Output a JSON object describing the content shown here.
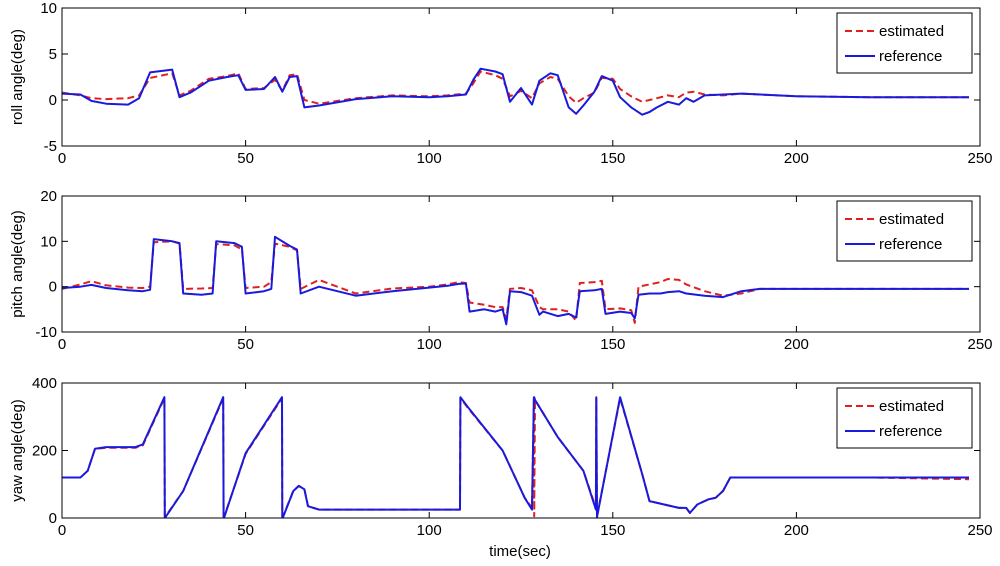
{
  "figure": {
    "xlabel": "time(sec)"
  },
  "chart_data": [
    {
      "type": "line",
      "ylabel": "roll angle(deg)",
      "xlim": [
        0,
        250
      ],
      "ylim": [
        -5,
        10
      ],
      "xticks": [
        "0",
        "50",
        "100",
        "150",
        "200",
        "250"
      ],
      "yticks": [
        "-5",
        "0",
        "5",
        "10"
      ],
      "legend": {
        "position": "top-right"
      },
      "series": [
        {
          "name": "estimated",
          "color": "#e02020",
          "style": "dashed",
          "x": [
            0,
            5,
            8,
            12,
            18,
            21,
            24,
            30,
            32,
            35,
            40,
            45,
            48,
            50,
            55,
            58,
            60,
            62,
            64,
            66,
            70,
            80,
            90,
            100,
            105,
            110,
            112,
            114,
            118,
            120,
            122,
            125,
            128,
            130,
            133,
            135,
            138,
            140,
            142,
            145,
            147,
            150,
            152,
            155,
            158,
            160,
            162,
            165,
            168,
            170,
            172,
            175,
            180,
            185,
            200,
            220,
            247
          ],
          "y": [
            0.8,
            0.5,
            0.2,
            0.1,
            0.2,
            0.5,
            2.4,
            2.9,
            0.5,
            1.0,
            2.3,
            2.6,
            2.9,
            1.2,
            1.3,
            2.2,
            1.0,
            2.7,
            2.8,
            0.0,
            -0.4,
            0.2,
            0.5,
            0.4,
            0.5,
            0.7,
            1.8,
            3.1,
            2.7,
            2.3,
            0.4,
            1.0,
            0.2,
            1.8,
            2.5,
            2.3,
            0.4,
            -0.3,
            0.2,
            0.8,
            2.4,
            2.3,
            1.2,
            0.4,
            -0.2,
            0.0,
            0.2,
            0.5,
            0.3,
            0.8,
            0.9,
            0.6,
            0.5,
            0.7,
            0.4,
            0.3,
            0.3
          ]
        },
        {
          "name": "reference",
          "color": "#1a1adc",
          "style": "solid",
          "x": [
            0,
            5,
            8,
            12,
            18,
            21,
            24,
            30,
            32,
            35,
            40,
            45,
            48,
            50,
            55,
            58,
            60,
            62,
            64,
            66,
            70,
            80,
            90,
            100,
            105,
            110,
            112,
            114,
            118,
            120,
            122,
            125,
            128,
            130,
            133,
            135,
            138,
            140,
            142,
            145,
            147,
            150,
            152,
            155,
            158,
            160,
            162,
            165,
            168,
            170,
            172,
            175,
            180,
            185,
            200,
            220,
            247
          ],
          "y": [
            0.7,
            0.6,
            -0.1,
            -0.4,
            -0.5,
            0.2,
            3.0,
            3.3,
            0.3,
            0.8,
            2.1,
            2.5,
            2.7,
            1.1,
            1.2,
            2.5,
            0.9,
            2.5,
            2.6,
            -0.8,
            -0.6,
            0.1,
            0.4,
            0.3,
            0.4,
            0.6,
            2.2,
            3.4,
            3.1,
            2.8,
            -0.2,
            1.3,
            -0.5,
            2.1,
            2.9,
            2.7,
            -0.8,
            -1.5,
            -0.6,
            0.9,
            2.6,
            2.1,
            0.3,
            -0.8,
            -1.6,
            -1.3,
            -0.8,
            -0.2,
            -0.5,
            0.2,
            -0.2,
            0.5,
            0.6,
            0.7,
            0.4,
            0.3,
            0.3
          ]
        }
      ]
    },
    {
      "type": "line",
      "ylabel": "pitch angle(deg)",
      "xlim": [
        0,
        250
      ],
      "ylim": [
        -10,
        20
      ],
      "xticks": [
        "0",
        "50",
        "100",
        "150",
        "200",
        "250"
      ],
      "yticks": [
        "-10",
        "0",
        "10",
        "20"
      ],
      "legend": {
        "position": "top-right"
      },
      "series": [
        {
          "name": "estimated",
          "color": "#e02020",
          "style": "dashed",
          "x": [
            0,
            5,
            8,
            12,
            18,
            22,
            24,
            25,
            30,
            32,
            33,
            38,
            41,
            42,
            47,
            49,
            50,
            55,
            57,
            58,
            62,
            64,
            65,
            70,
            80,
            90,
            100,
            105,
            108,
            110,
            111,
            115,
            118,
            120,
            121,
            122,
            125,
            128,
            130,
            131,
            135,
            138,
            140,
            141,
            145,
            147,
            148,
            152,
            155,
            156,
            157,
            160,
            163,
            165,
            168,
            170,
            175,
            180,
            185,
            190,
            200,
            220,
            247
          ],
          "y": [
            -0.5,
            0.5,
            1.2,
            0.3,
            -0.2,
            -0.3,
            0.0,
            9.8,
            10.0,
            9.5,
            -0.5,
            -0.4,
            -0.3,
            9.4,
            9.1,
            8.2,
            -0.3,
            0.0,
            1.0,
            9.5,
            8.8,
            8.0,
            -0.5,
            1.5,
            -1.5,
            -0.4,
            0.0,
            0.5,
            1.0,
            0.8,
            -3.5,
            -4.0,
            -4.5,
            -4.5,
            -7.2,
            -0.5,
            -0.3,
            -0.8,
            -4.5,
            -5.0,
            -5.0,
            -5.5,
            -7.5,
            0.8,
            1.0,
            1.3,
            -5.0,
            -4.8,
            -5.2,
            -8.0,
            0.0,
            0.5,
            1.0,
            1.7,
            1.5,
            0.5,
            -1.0,
            -2.0,
            -1.5,
            -0.5,
            -0.5,
            -0.5,
            -0.5
          ]
        },
        {
          "name": "reference",
          "color": "#1a1adc",
          "style": "solid",
          "x": [
            0,
            5,
            8,
            12,
            18,
            22,
            24,
            25,
            30,
            32,
            33,
            38,
            41,
            42,
            47,
            49,
            50,
            55,
            57,
            58,
            62,
            64,
            65,
            70,
            80,
            90,
            100,
            105,
            108,
            110,
            111,
            115,
            118,
            120,
            121,
            122,
            125,
            128,
            130,
            131,
            135,
            138,
            140,
            141,
            145,
            147,
            148,
            152,
            155,
            156,
            157,
            160,
            163,
            165,
            168,
            170,
            175,
            180,
            185,
            190,
            200,
            220,
            247
          ],
          "y": [
            -0.3,
            0.0,
            0.4,
            -0.3,
            -0.8,
            -1.0,
            -0.7,
            10.5,
            10.0,
            9.6,
            -1.5,
            -1.8,
            -1.5,
            10.0,
            9.6,
            8.8,
            -1.5,
            -1.0,
            -0.5,
            11.0,
            9.0,
            8.2,
            -1.5,
            0.0,
            -2.0,
            -1.0,
            -0.2,
            0.2,
            0.6,
            0.7,
            -5.5,
            -5.0,
            -5.5,
            -5.0,
            -8.3,
            -1.0,
            -1.2,
            -2.0,
            -6.2,
            -5.5,
            -6.5,
            -6.0,
            -6.8,
            -1.0,
            -0.8,
            -0.5,
            -6.0,
            -5.5,
            -5.8,
            -7.0,
            -1.8,
            -1.5,
            -1.5,
            -1.2,
            -1.0,
            -1.5,
            -2.0,
            -2.3,
            -1.0,
            -0.5,
            -0.5,
            -0.5,
            -0.5
          ]
        }
      ]
    },
    {
      "type": "line",
      "ylabel": "yaw angle(deg)",
      "xlim": [
        0,
        250
      ],
      "ylim": [
        0,
        400
      ],
      "xticks": [
        "0",
        "50",
        "100",
        "150",
        "200",
        "250"
      ],
      "yticks": [
        "0",
        "200",
        "400"
      ],
      "legend": {
        "position": "top-right"
      },
      "series": [
        {
          "name": "estimated",
          "color": "#e02020",
          "style": "dashed",
          "x": [
            0,
            5,
            7,
            9,
            12,
            20,
            22,
            27.9,
            28,
            28.2,
            33,
            43.9,
            44,
            44.2,
            50,
            59.9,
            60,
            60.2,
            63,
            64.5,
            66,
            67,
            70,
            80,
            100,
            108.4,
            108.5,
            111,
            120,
            126,
            128,
            128.5,
            128.6,
            128.8,
            135,
            142,
            145.4,
            145.5,
            145.7,
            152,
            158,
            160,
            168,
            170,
            171,
            173,
            176,
            178,
            180,
            182,
            190,
            200,
            220,
            247
          ],
          "y": [
            120,
            120,
            140,
            205,
            208,
            208,
            215,
            355,
            5,
            5,
            80,
            355,
            5,
            5,
            190,
            355,
            5,
            5,
            80,
            95,
            85,
            35,
            25,
            25,
            25,
            25,
            355,
            320,
            200,
            60,
            30,
            355,
            5,
            350,
            240,
            140,
            30,
            355,
            5,
            355,
            130,
            50,
            30,
            30,
            15,
            40,
            55,
            60,
            80,
            120,
            120,
            120,
            120,
            115
          ]
        },
        {
          "name": "reference",
          "color": "#1a1adc",
          "style": "solid",
          "x": [
            0,
            5,
            7,
            9,
            12,
            20,
            22,
            27.9,
            28,
            28.2,
            33,
            43.9,
            44,
            44.2,
            50,
            59.9,
            60,
            60.2,
            63,
            64.5,
            66,
            67,
            70,
            80,
            100,
            108.4,
            108.5,
            111,
            120,
            126,
            128,
            128.5,
            128.6,
            128.8,
            135,
            142,
            145.4,
            145.5,
            145.7,
            152,
            158,
            160,
            168,
            170,
            171,
            173,
            176,
            178,
            180,
            182,
            190,
            200,
            220,
            247
          ],
          "y": [
            120,
            120,
            140,
            205,
            210,
            210,
            218,
            358,
            3,
            3,
            80,
            358,
            3,
            3,
            192,
            358,
            3,
            3,
            80,
            95,
            85,
            35,
            25,
            25,
            25,
            25,
            358,
            322,
            200,
            60,
            25,
            358,
            358,
            350,
            240,
            140,
            25,
            358,
            3,
            358,
            130,
            50,
            30,
            30,
            15,
            40,
            55,
            60,
            80,
            120,
            120,
            120,
            120,
            120
          ]
        }
      ]
    }
  ]
}
